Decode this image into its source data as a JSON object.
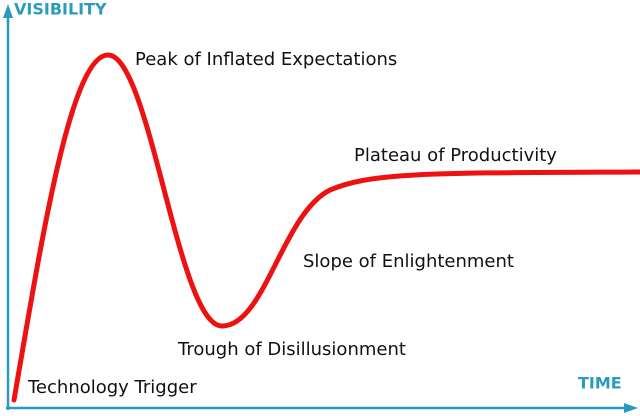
{
  "axes": {
    "y_label": "VISIBILITY",
    "x_label": "TIME"
  },
  "phases": [
    {
      "label": "Technology Trigger"
    },
    {
      "label": "Peak of Inflated Expectations"
    },
    {
      "label": "Trough of Disillusionment"
    },
    {
      "label": "Slope of Enlightenment"
    },
    {
      "label": "Plateau of Productivity"
    }
  ]
}
